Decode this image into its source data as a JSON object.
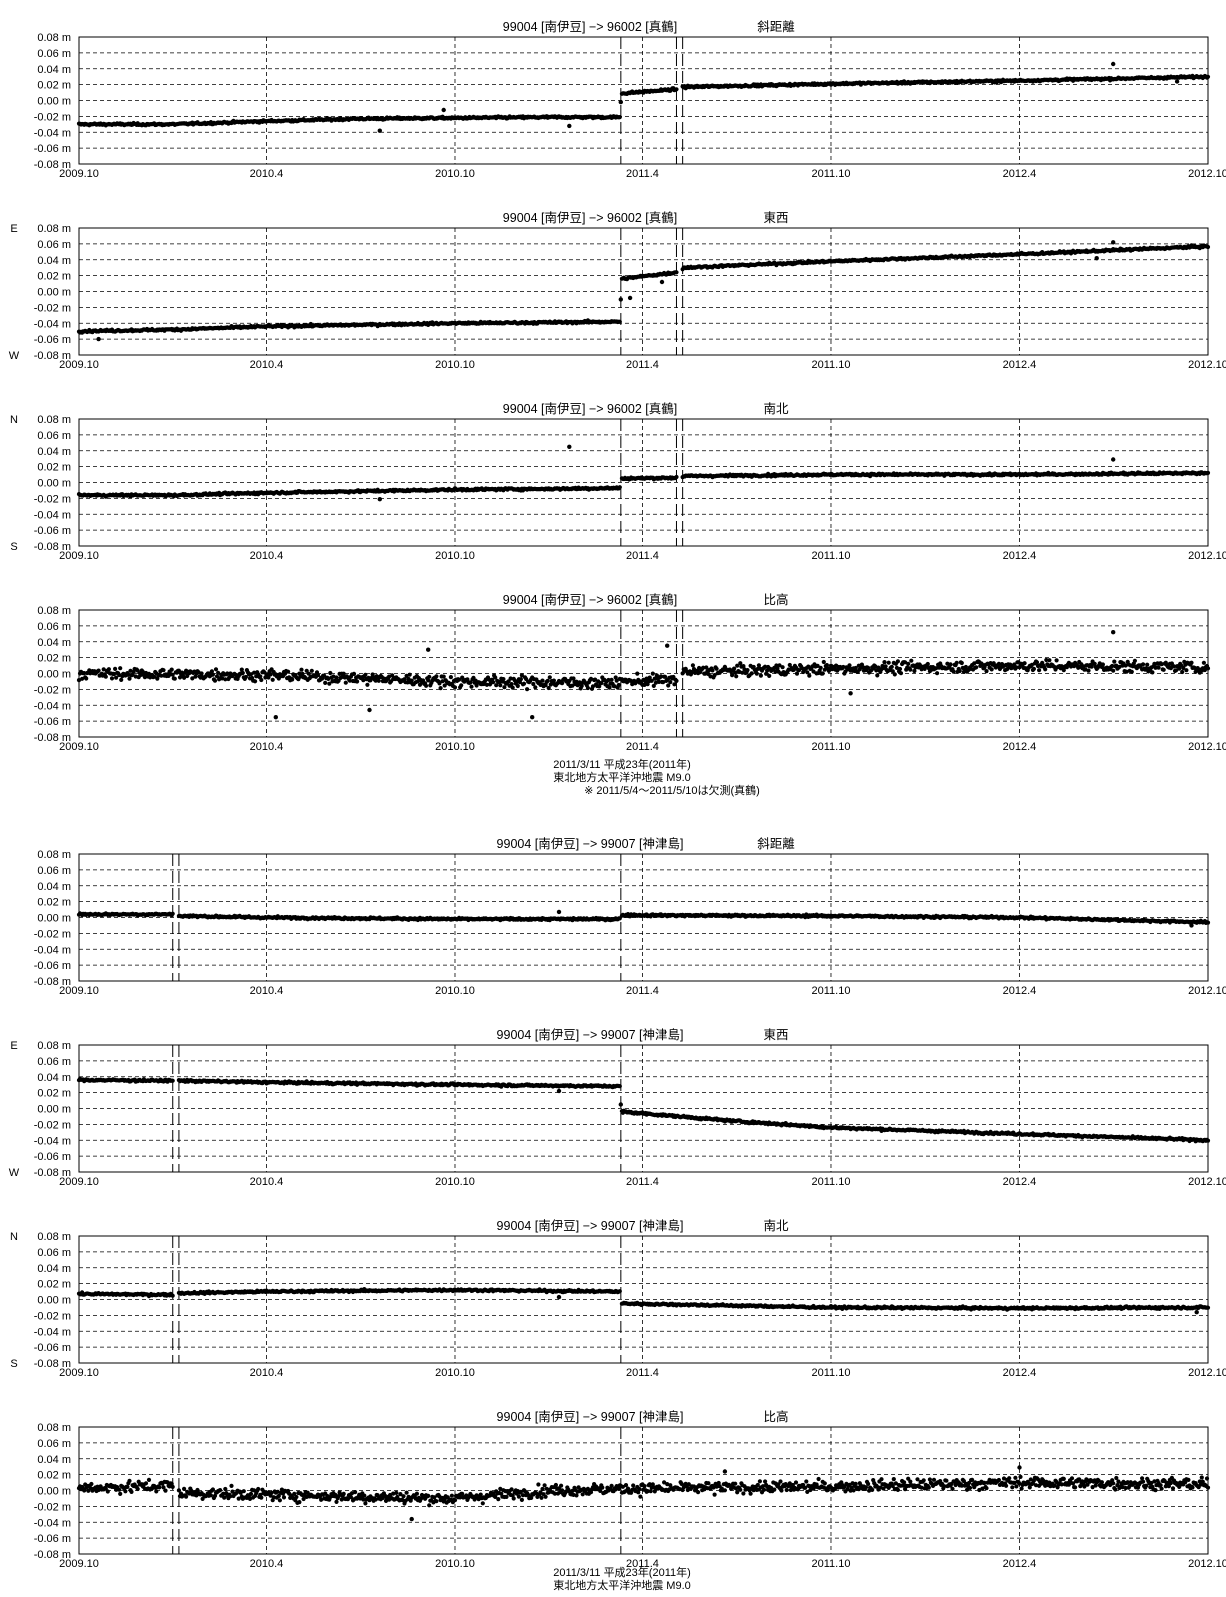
{
  "colors": {
    "axis": "#000000",
    "grid": "#000000",
    "points": "#000000",
    "background": "#ffffff"
  },
  "chart_data": [
    {
      "type": "scatter",
      "title": "99004 [南伊豆] −> 96002 [真鶴]",
      "component": "斜距離",
      "xlim": [
        "2009-10-01",
        "2012-10-01"
      ],
      "ylim": [
        -0.08,
        0.08
      ],
      "ytick_labels": [
        "0.08 m",
        "0.06 m",
        "0.04 m",
        "0.02 m",
        "0.00 m",
        "-0.02 m",
        "-0.04 m",
        "-0.06 m",
        "-0.08 m"
      ],
      "xtick_labels": [
        "2009.10",
        "2010.4",
        "2010.10",
        "2011.4",
        "2011.10",
        "2012.4",
        "2012.10"
      ],
      "side_top": "",
      "side_bottom": "",
      "event_lines": [
        "2011-03-11",
        "2011-05-04",
        "2011-05-10"
      ],
      "gaps": [
        [
          "2011-05-04",
          "2011-05-10"
        ]
      ],
      "x": [
        "2009-10-01",
        "2010-01-01",
        "2010-04-01",
        "2010-07-01",
        "2010-10-01",
        "2011-01-01",
        "2011-03-10",
        "2011-03-12",
        "2011-05-03",
        "2011-05-11",
        "2011-10-01",
        "2012-04-01",
        "2012-10-01"
      ],
      "y": [
        -0.03,
        -0.03,
        -0.026,
        -0.023,
        -0.022,
        -0.021,
        -0.021,
        0.009,
        0.014,
        0.017,
        0.021,
        0.025,
        0.03
      ],
      "outliers": [
        [
          "2010-07-20",
          -0.038
        ],
        [
          "2010-09-20",
          -0.012
        ],
        [
          "2011-01-20",
          -0.032
        ],
        [
          "2011-03-11",
          -0.002
        ],
        [
          "2012-07-01",
          0.046
        ],
        [
          "2012-09-01",
          0.024
        ]
      ]
    },
    {
      "type": "scatter",
      "title": "99004 [南伊豆] −> 96002 [真鶴]",
      "component": "東西",
      "xlim": [
        "2009-10-01",
        "2012-10-01"
      ],
      "ylim": [
        -0.08,
        0.08
      ],
      "ytick_labels": [
        "0.08 m",
        "0.06 m",
        "0.04 m",
        "0.02 m",
        "0.00 m",
        "-0.02 m",
        "-0.04 m",
        "-0.06 m",
        "-0.08 m"
      ],
      "xtick_labels": [
        "2009.10",
        "2010.4",
        "2010.10",
        "2011.4",
        "2011.10",
        "2012.4",
        "2012.10"
      ],
      "side_top": "E",
      "side_bottom": "W",
      "event_lines": [
        "2011-03-11",
        "2011-05-04",
        "2011-05-10"
      ],
      "gaps": [
        [
          "2011-05-04",
          "2011-05-10"
        ]
      ],
      "x": [
        "2009-10-01",
        "2010-01-01",
        "2010-04-01",
        "2010-07-01",
        "2010-10-01",
        "2011-01-01",
        "2011-03-10",
        "2011-03-12",
        "2011-05-03",
        "2011-05-11",
        "2011-10-01",
        "2012-04-01",
        "2012-10-01"
      ],
      "y": [
        -0.05,
        -0.048,
        -0.044,
        -0.042,
        -0.04,
        -0.039,
        -0.038,
        0.016,
        0.024,
        0.03,
        0.038,
        0.047,
        0.057
      ],
      "outliers": [
        [
          "2009-10-20",
          -0.06
        ],
        [
          "2011-03-11",
          -0.01
        ],
        [
          "2011-03-20",
          -0.008
        ],
        [
          "2011-04-20",
          0.012
        ],
        [
          "2012-07-01",
          0.062
        ],
        [
          "2012-06-15",
          0.042
        ]
      ]
    },
    {
      "type": "scatter",
      "title": "99004 [南伊豆] −> 96002 [真鶴]",
      "component": "南北",
      "xlim": [
        "2009-10-01",
        "2012-10-01"
      ],
      "ylim": [
        -0.08,
        0.08
      ],
      "ytick_labels": [
        "0.08 m",
        "0.06 m",
        "0.04 m",
        "0.02 m",
        "0.00 m",
        "-0.02 m",
        "-0.04 m",
        "-0.06 m",
        "-0.08 m"
      ],
      "xtick_labels": [
        "2009.10",
        "2010.4",
        "2010.10",
        "2011.4",
        "2011.10",
        "2012.4",
        "2012.10"
      ],
      "side_top": "N",
      "side_bottom": "S",
      "event_lines": [
        "2011-03-11",
        "2011-05-04",
        "2011-05-10"
      ],
      "gaps": [
        [
          "2011-05-04",
          "2011-05-10"
        ]
      ],
      "x": [
        "2009-10-01",
        "2010-01-01",
        "2010-04-01",
        "2010-07-01",
        "2010-10-01",
        "2011-01-01",
        "2011-03-10",
        "2011-03-12",
        "2011-05-03",
        "2011-05-11",
        "2011-10-01",
        "2012-04-01",
        "2012-10-01"
      ],
      "y": [
        -0.016,
        -0.016,
        -0.013,
        -0.011,
        -0.009,
        -0.008,
        -0.007,
        0.005,
        0.006,
        0.008,
        0.01,
        0.01,
        0.012
      ],
      "outliers": [
        [
          "2011-01-20",
          0.045
        ],
        [
          "2012-07-01",
          0.029
        ],
        [
          "2010-07-20",
          -0.021
        ]
      ]
    },
    {
      "type": "scatter",
      "title": "99004 [南伊豆] −> 96002 [真鶴]",
      "component": "比高",
      "xlim": [
        "2009-10-01",
        "2012-10-01"
      ],
      "ylim": [
        -0.08,
        0.08
      ],
      "ytick_labels": [
        "0.08 m",
        "0.06 m",
        "0.04 m",
        "0.02 m",
        "0.00 m",
        "-0.02 m",
        "-0.04 m",
        "-0.06 m",
        "-0.08 m"
      ],
      "xtick_labels": [
        "2009.10",
        "2010.4",
        "2010.10",
        "2011.4",
        "2011.10",
        "2012.4",
        "2012.10"
      ],
      "side_top": "",
      "side_bottom": "",
      "event_lines": [
        "2011-03-11",
        "2011-05-04",
        "2011-05-10"
      ],
      "gaps": [
        [
          "2011-05-04",
          "2011-05-10"
        ]
      ],
      "x": [
        "2009-10-01",
        "2010-04-01",
        "2010-10-01",
        "2011-03-10",
        "2011-03-12",
        "2011-05-03",
        "2011-05-11",
        "2011-10-01",
        "2012-04-01",
        "2012-10-01"
      ],
      "y": [
        0.0,
        -0.002,
        -0.01,
        -0.012,
        -0.01,
        -0.008,
        0.002,
        0.006,
        0.01,
        0.008
      ],
      "noise": 0.009,
      "outliers": [
        [
          "2010-04-10",
          -0.055
        ],
        [
          "2010-09-05",
          0.03
        ],
        [
          "2010-12-15",
          -0.055
        ],
        [
          "2011-04-25",
          0.035
        ],
        [
          "2012-07-01",
          0.052
        ],
        [
          "2011-10-20",
          -0.025
        ],
        [
          "2010-07-10",
          -0.046
        ]
      ]
    },
    {
      "type": "scatter",
      "title": "99004 [南伊豆] −> 99007 [神津島]",
      "component": "斜距離",
      "xlim": [
        "2009-10-01",
        "2012-10-01"
      ],
      "ylim": [
        -0.08,
        0.08
      ],
      "ytick_labels": [
        "0.08 m",
        "0.06 m",
        "0.04 m",
        "0.02 m",
        "0.00 m",
        "-0.02 m",
        "-0.04 m",
        "-0.06 m",
        "-0.08 m"
      ],
      "xtick_labels": [
        "2009.10",
        "2010.4",
        "2010.10",
        "2011.4",
        "2011.10",
        "2012.4",
        "2012.10"
      ],
      "side_top": "",
      "side_bottom": "",
      "event_lines": [
        "2009-12-31",
        "2010-01-06",
        "2011-03-11"
      ],
      "gaps": [
        [
          "2009-12-31",
          "2010-01-06"
        ]
      ],
      "x": [
        "2009-10-01",
        "2009-12-30",
        "2010-01-07",
        "2010-04-01",
        "2010-10-01",
        "2011-03-10",
        "2011-03-12",
        "2011-10-01",
        "2012-04-01",
        "2012-10-01"
      ],
      "y": [
        0.004,
        0.004,
        0.002,
        0.0,
        -0.002,
        -0.002,
        0.003,
        0.002,
        0.0,
        -0.006
      ],
      "outliers": [
        [
          "2011-01-10",
          0.007
        ],
        [
          "2012-09-15",
          -0.01
        ]
      ]
    },
    {
      "type": "scatter",
      "title": "99004 [南伊豆] −> 99007 [神津島]",
      "component": "東西",
      "xlim": [
        "2009-10-01",
        "2012-10-01"
      ],
      "ylim": [
        -0.08,
        0.08
      ],
      "ytick_labels": [
        "0.08 m",
        "0.06 m",
        "0.04 m",
        "0.02 m",
        "0.00 m",
        "-0.02 m",
        "-0.04 m",
        "-0.06 m",
        "-0.08 m"
      ],
      "xtick_labels": [
        "2009.10",
        "2010.4",
        "2010.10",
        "2011.4",
        "2011.10",
        "2012.4",
        "2012.10"
      ],
      "side_top": "E",
      "side_bottom": "W",
      "event_lines": [
        "2009-12-31",
        "2010-01-06",
        "2011-03-11"
      ],
      "gaps": [
        [
          "2009-12-31",
          "2010-01-06"
        ]
      ],
      "x": [
        "2009-10-01",
        "2009-12-30",
        "2010-01-07",
        "2010-04-01",
        "2010-10-01",
        "2011-03-10",
        "2011-03-12",
        "2011-07-01",
        "2011-10-01",
        "2012-04-01",
        "2012-10-01"
      ],
      "y": [
        0.036,
        0.035,
        0.035,
        0.033,
        0.03,
        0.028,
        -0.004,
        -0.016,
        -0.024,
        -0.032,
        -0.04
      ],
      "outliers": [
        [
          "2011-03-11",
          0.005
        ],
        [
          "2011-01-10",
          0.022
        ]
      ]
    },
    {
      "type": "scatter",
      "title": "99004 [南伊豆] −> 99007 [神津島]",
      "component": "南北",
      "xlim": [
        "2009-10-01",
        "2012-10-01"
      ],
      "ylim": [
        -0.08,
        0.08
      ],
      "ytick_labels": [
        "0.08 m",
        "0.06 m",
        "0.04 m",
        "0.02 m",
        "0.00 m",
        "-0.02 m",
        "-0.04 m",
        "-0.06 m",
        "-0.08 m"
      ],
      "xtick_labels": [
        "2009.10",
        "2010.4",
        "2010.10",
        "2011.4",
        "2011.10",
        "2012.4",
        "2012.10"
      ],
      "side_top": "N",
      "side_bottom": "S",
      "event_lines": [
        "2009-12-31",
        "2010-01-06",
        "2011-03-11"
      ],
      "gaps": [
        [
          "2009-12-31",
          "2010-01-06"
        ]
      ],
      "x": [
        "2009-10-01",
        "2009-12-30",
        "2010-01-07",
        "2010-04-01",
        "2010-10-01",
        "2011-03-10",
        "2011-03-12",
        "2011-10-01",
        "2012-04-01",
        "2012-10-01"
      ],
      "y": [
        0.007,
        0.006,
        0.008,
        0.01,
        0.012,
        0.01,
        -0.005,
        -0.01,
        -0.011,
        -0.01
      ],
      "outliers": [
        [
          "2011-01-10",
          0.003
        ],
        [
          "2012-09-20",
          -0.016
        ]
      ]
    },
    {
      "type": "scatter",
      "title": "99004 [南伊豆] −> 99007 [神津島]",
      "component": "比高",
      "xlim": [
        "2009-10-01",
        "2012-10-01"
      ],
      "ylim": [
        -0.08,
        0.08
      ],
      "ytick_labels": [
        "0.08 m",
        "0.06 m",
        "0.04 m",
        "0.02 m",
        "0.00 m",
        "-0.02 m",
        "-0.04 m",
        "-0.06 m",
        "-0.08 m"
      ],
      "xtick_labels": [
        "2009.10",
        "2010.4",
        "2010.10",
        "2011.4",
        "2011.10",
        "2012.4",
        "2012.10"
      ],
      "side_top": "",
      "side_bottom": "",
      "event_lines": [
        "2009-12-31",
        "2010-01-06",
        "2011-03-11"
      ],
      "gaps": [
        [
          "2009-12-31",
          "2010-01-06"
        ]
      ],
      "x": [
        "2009-10-01",
        "2009-12-30",
        "2010-01-07",
        "2010-04-01",
        "2010-07-01",
        "2010-10-01",
        "2011-01-01",
        "2011-03-10",
        "2011-10-01",
        "2012-04-01",
        "2012-10-01"
      ],
      "y": [
        0.003,
        0.006,
        -0.003,
        -0.005,
        -0.008,
        -0.01,
        0.0,
        0.002,
        0.005,
        0.01,
        0.008
      ],
      "noise": 0.009,
      "outliers": [
        [
          "2010-08-20",
          -0.036
        ],
        [
          "2012-04-01",
          0.029
        ],
        [
          "2011-06-20",
          0.024
        ]
      ]
    }
  ],
  "annotations": {
    "group1": [
      "2011/3/11  平成23年(2011年)",
      "東北地方太平洋沖地震  M9.0",
      "※ 2011/5/4〜2011/5/10は欠測(真鶴)"
    ],
    "group2": [
      "2011/3/11  平成23年(2011年)",
      "東北地方太平洋沖地震  M9.0"
    ]
  }
}
